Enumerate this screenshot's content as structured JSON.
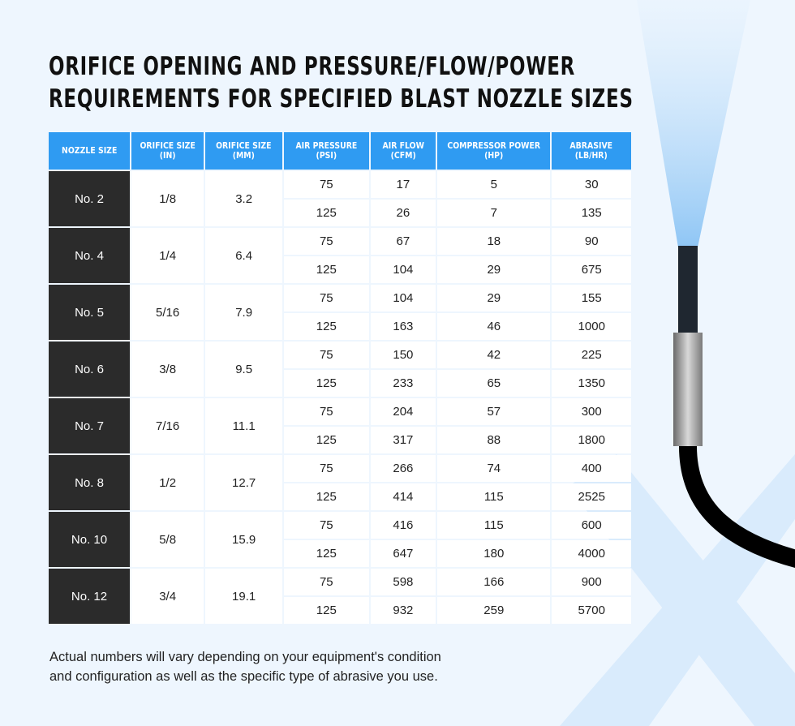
{
  "title": [
    "ORIFICE OPENING AND PRESSURE/FLOW/POWER",
    "REQUIREMENTS FOR SPECIFIED BLAST NOZZLE SIZES"
  ],
  "table": {
    "headers": [
      "Nozzle Size",
      "Orifice Size (in)",
      "Orifice Size (mm)",
      "Air Pressure (PSI)",
      "Air Flow (CFM)",
      "Compressor Power (HP)",
      "Abrasive (lb/hr)"
    ],
    "rows": [
      {
        "nozzle": "No. 2",
        "in": "1/8",
        "mm": "3.2",
        "sub": [
          [
            "75",
            "17",
            "5",
            "30"
          ],
          [
            "125",
            "26",
            "7",
            "135"
          ]
        ]
      },
      {
        "nozzle": "No. 4",
        "in": "1/4",
        "mm": "6.4",
        "sub": [
          [
            "75",
            "67",
            "18",
            "90"
          ],
          [
            "125",
            "104",
            "29",
            "675"
          ]
        ]
      },
      {
        "nozzle": "No. 5",
        "in": "5/16",
        "mm": "7.9",
        "sub": [
          [
            "75",
            "104",
            "29",
            "155"
          ],
          [
            "125",
            "163",
            "46",
            "1000"
          ]
        ]
      },
      {
        "nozzle": "No. 6",
        "in": "3/8",
        "mm": "9.5",
        "sub": [
          [
            "75",
            "150",
            "42",
            "225"
          ],
          [
            "125",
            "233",
            "65",
            "1350"
          ]
        ]
      },
      {
        "nozzle": "No. 7",
        "in": "7/16",
        "mm": "11.1",
        "sub": [
          [
            "75",
            "204",
            "57",
            "300"
          ],
          [
            "125",
            "317",
            "88",
            "1800"
          ]
        ]
      },
      {
        "nozzle": "No. 8",
        "in": "1/2",
        "mm": "12.7",
        "sub": [
          [
            "75",
            "266",
            "74",
            "400"
          ],
          [
            "125",
            "414",
            "115",
            "2525"
          ]
        ]
      },
      {
        "nozzle": "No. 10",
        "in": "5/8",
        "mm": "15.9",
        "sub": [
          [
            "75",
            "416",
            "115",
            "600"
          ],
          [
            "125",
            "647",
            "180",
            "4000"
          ]
        ]
      },
      {
        "nozzle": "No. 12",
        "in": "3/4",
        "mm": "19.1",
        "sub": [
          [
            "75",
            "598",
            "166",
            "900"
          ],
          [
            "125",
            "932",
            "259",
            "5700"
          ]
        ]
      }
    ]
  },
  "note": [
    "Actual numbers will vary depending on your equipment's condition",
    "and configuration as well as the specific type of abrasive you use."
  ],
  "colors": {
    "header": "#2f9bf2",
    "nozzle_cell": "#2b2b2b",
    "background": "#eef6fe"
  }
}
